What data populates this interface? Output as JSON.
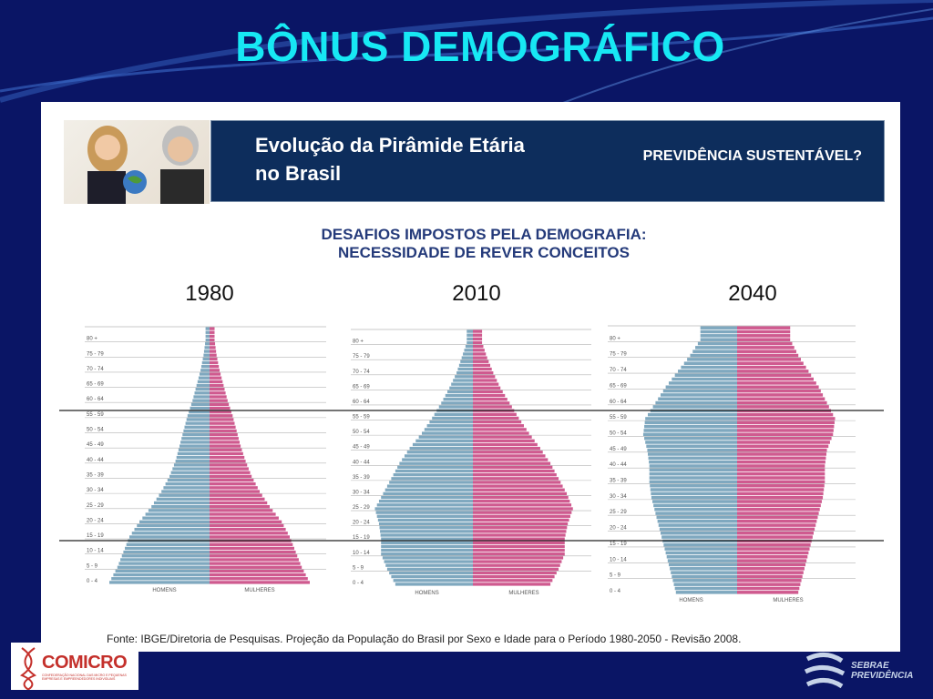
{
  "slide": {
    "title": "BÔNUS DEMOGRÁFICO"
  },
  "header": {
    "title_line1": "Evolução da Pirâmide Etária",
    "title_line2": "no Brasil",
    "question": "PREVIDÊNCIA SUSTENTÁVEL?"
  },
  "subtitle": {
    "line1": "DESAFIOS IMPOSTOS PELA DEMOGRAFIA:",
    "line2": "NECESSIDADE DE REVER CONCEITOS"
  },
  "source": "Fonte: IBGE/Diretoria de Pesquisas. Projeção da População do Brasil por Sexo e Idade para o Período 1980-2050 - Revisão 2008.",
  "logos": {
    "left": "COMICRO",
    "left_small": "CONFEDERAÇÃO NACIONAL DAS MICRO E PEQUENAS EMPRESAS E EMPREENDEDORES INDIVIDUAIS",
    "right_line1": "SEBRAE",
    "right_line2": "PREVIDÊNCIA"
  },
  "colors": {
    "background": "#0a1565",
    "title": "#17e8f4",
    "header_band": "#0d2d5c",
    "men": "#7fa8bf",
    "women": "#cf5a8f"
  },
  "chart_data": [
    {
      "type": "bar",
      "orientation": "horizontal-pyramid",
      "title": "1980",
      "age_groups": [
        "0 - 4",
        "5 - 9",
        "10 - 14",
        "15 - 19",
        "20 - 24",
        "25 - 29",
        "30 - 34",
        "35 - 39",
        "40 - 44",
        "45 - 49",
        "50 - 54",
        "55 - 59",
        "60 - 64",
        "65 - 69",
        "70 - 74",
        "75 - 79",
        "80 +"
      ],
      "series": [
        {
          "name": "HOMENS",
          "values": [
            1.0,
            0.92,
            0.86,
            0.8,
            0.7,
            0.58,
            0.48,
            0.4,
            0.34,
            0.3,
            0.26,
            0.22,
            0.17,
            0.13,
            0.09,
            0.06,
            0.04
          ]
        },
        {
          "name": "MULHERES",
          "values": [
            1.0,
            0.92,
            0.86,
            0.8,
            0.72,
            0.6,
            0.5,
            0.42,
            0.36,
            0.31,
            0.27,
            0.23,
            0.18,
            0.14,
            0.1,
            0.07,
            0.05
          ]
        }
      ],
      "xlabel_left": "HOMENS",
      "xlabel_right": "MULHERES"
    },
    {
      "type": "bar",
      "orientation": "horizontal-pyramid",
      "title": "2010",
      "age_groups": [
        "0 - 4",
        "5 - 9",
        "10 - 14",
        "15 - 19",
        "20 - 24",
        "25 - 29",
        "30 - 34",
        "35 - 39",
        "40 - 44",
        "45 - 49",
        "50 - 54",
        "55 - 59",
        "60 - 64",
        "65 - 69",
        "70 - 74",
        "75 - 79",
        "80 +"
      ],
      "series": [
        {
          "name": "HOMENS",
          "values": [
            0.76,
            0.84,
            0.9,
            0.9,
            0.92,
            0.96,
            0.88,
            0.8,
            0.72,
            0.62,
            0.5,
            0.4,
            0.31,
            0.23,
            0.16,
            0.11,
            0.06
          ]
        },
        {
          "name": "MULHERES",
          "values": [
            0.76,
            0.84,
            0.9,
            0.9,
            0.93,
            0.98,
            0.92,
            0.84,
            0.76,
            0.66,
            0.55,
            0.45,
            0.36,
            0.27,
            0.2,
            0.14,
            0.09
          ]
        }
      ],
      "xlabel_left": "HOMENS",
      "xlabel_right": "MULHERES"
    },
    {
      "type": "bar",
      "orientation": "horizontal-pyramid",
      "title": "2040",
      "age_groups": [
        "0 - 4",
        "5 - 9",
        "10 - 14",
        "15 - 19",
        "20 - 24",
        "25 - 29",
        "30 - 34",
        "35 - 39",
        "40 - 44",
        "45 - 49",
        "50 - 54",
        "55 - 59",
        "60 - 64",
        "65 - 69",
        "70 - 74",
        "75 - 79",
        "80 +"
      ],
      "series": [
        {
          "name": "HOMENS",
          "values": [
            0.6,
            0.64,
            0.68,
            0.72,
            0.76,
            0.8,
            0.84,
            0.86,
            0.86,
            0.88,
            0.92,
            0.9,
            0.8,
            0.7,
            0.58,
            0.46,
            0.36
          ]
        },
        {
          "name": "MULHERES",
          "values": [
            0.6,
            0.64,
            0.68,
            0.72,
            0.76,
            0.8,
            0.84,
            0.86,
            0.86,
            0.88,
            0.94,
            0.96,
            0.88,
            0.8,
            0.7,
            0.6,
            0.52
          ]
        }
      ],
      "xlabel_left": "HOMENS",
      "xlabel_right": "MULHERES"
    }
  ]
}
